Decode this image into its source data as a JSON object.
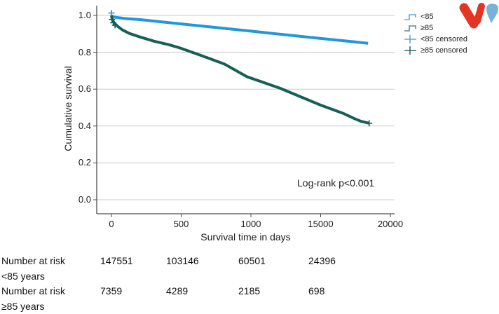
{
  "chart_data": {
    "type": "line",
    "subtype": "kaplan-meier-survival",
    "title": "",
    "xlabel": "Survival time in days",
    "ylabel": "Cumulative survival",
    "x_tick_labels": [
      "0",
      "500",
      "1000",
      "15000",
      "20000"
    ],
    "y_tick_labels": [
      "1.0",
      "0.8",
      "0.6",
      "0.4",
      "0.2",
      "0.0"
    ],
    "ylim": [
      0.0,
      1.0
    ],
    "grid": "horizontal",
    "legend_position": "outside-right",
    "annotation": "Log-rank p<0.001",
    "colors": {
      "axis": "#4d4d4d",
      "gridline": "#cccccc"
    },
    "legend": [
      {
        "label": "<85",
        "symbol": "step",
        "color": "#5ea9d6"
      },
      {
        "label": "≥85",
        "symbol": "step",
        "color": "#5d8799"
      },
      {
        "label": "<85 censored",
        "symbol": "plus",
        "color": "#5ea9d6"
      },
      {
        "label": "≥85 censored",
        "symbol": "plus",
        "color": "#2e6f70"
      }
    ],
    "series": [
      {
        "name": "<85",
        "color": "#2496da",
        "line_width": 4,
        "points": [
          [
            0,
            1.0
          ],
          [
            0.004,
            0.992
          ],
          [
            0.05,
            0.983
          ],
          [
            0.103,
            0.977
          ],
          [
            0.241,
            0.955
          ],
          [
            0.485,
            0.917
          ],
          [
            0.751,
            0.875
          ],
          [
            0.92,
            0.849
          ]
        ],
        "censored_at": [
          [
            0.0,
            1.013
          ]
        ]
      },
      {
        "name": "≥85",
        "color": "#175f58",
        "line_width": 4,
        "points": [
          [
            0,
            1.0
          ],
          [
            0.003,
            0.977
          ],
          [
            0.01,
            0.958
          ],
          [
            0.023,
            0.94
          ],
          [
            0.04,
            0.921
          ],
          [
            0.065,
            0.902
          ],
          [
            0.103,
            0.883
          ],
          [
            0.153,
            0.86
          ],
          [
            0.204,
            0.842
          ],
          [
            0.241,
            0.826
          ],
          [
            0.317,
            0.785
          ],
          [
            0.405,
            0.736
          ],
          [
            0.485,
            0.668
          ],
          [
            0.606,
            0.604
          ],
          [
            0.751,
            0.513
          ],
          [
            0.832,
            0.468
          ],
          [
            0.869,
            0.442
          ],
          [
            0.894,
            0.426
          ],
          [
            0.925,
            0.415
          ]
        ],
        "censored_at": [
          [
            0.002,
            0.978
          ],
          [
            0.007,
            0.96
          ],
          [
            0.013,
            0.947
          ],
          [
            0.924,
            0.415
          ]
        ]
      }
    ]
  },
  "risk_table": {
    "rows": [
      {
        "label_line1": "Number at risk",
        "label_line2": "<85 years",
        "values": [
          "147551",
          "103146",
          "60501",
          "24396"
        ]
      },
      {
        "label_line1": "Number at risk",
        "label_line2": "≥85 years",
        "values": [
          "7359",
          "4289",
          "2185",
          "698"
        ]
      }
    ]
  },
  "logo": {
    "red": "#e63423",
    "blue": "#77b3d8"
  }
}
